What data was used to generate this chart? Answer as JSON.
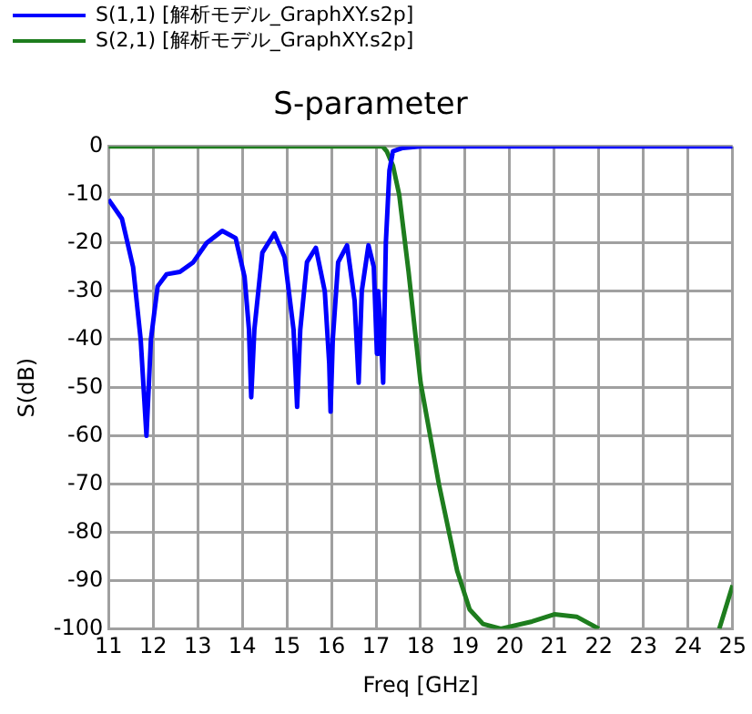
{
  "chart_data": {
    "type": "line",
    "title": "S-parameter",
    "xlabel": "Freq [GHz]",
    "ylabel": "S(dB)",
    "xlim": [
      11,
      25
    ],
    "xticks": [
      11,
      12,
      13,
      14,
      15,
      16,
      17,
      18,
      19,
      20,
      21,
      22,
      23,
      24,
      25
    ],
    "ylim": [
      -100,
      0
    ],
    "yticks": [
      -100,
      -90,
      -80,
      -70,
      -60,
      -50,
      -40,
      -30,
      -20,
      -10,
      0
    ],
    "grid": true,
    "legend": "top left",
    "marker": "none",
    "line_style": "solid",
    "series": [
      {
        "name": "S(1,1) [解析モデル_GraphXY.s2p]",
        "color": "#0000ff",
        "x": [
          11,
          11.3,
          11.55,
          11.72,
          11.85,
          11.95,
          12.1,
          12.3,
          12.6,
          12.9,
          13.2,
          13.55,
          13.85,
          14.05,
          14.15,
          14.2,
          14.27,
          14.45,
          14.72,
          14.95,
          15.15,
          15.23,
          15.3,
          15.45,
          15.65,
          15.85,
          15.95,
          15.98,
          16.03,
          16.15,
          16.35,
          16.52,
          16.61,
          16.68,
          16.83,
          16.95,
          17.02,
          17.05,
          17.1,
          17.16,
          17.22,
          17.3,
          17.38,
          17.6,
          18,
          25
        ],
        "values": [
          -11,
          -15,
          -25,
          -40,
          -60,
          -40,
          -29,
          -26.5,
          -26,
          -24,
          -20,
          -17.5,
          -19,
          -27,
          -38,
          -52,
          -38,
          -22,
          -18,
          -23,
          -38,
          -54,
          -38,
          -24,
          -21,
          -30,
          -45,
          -55,
          -40,
          -24,
          -20.5,
          -32,
          -49,
          -30,
          -20.5,
          -25,
          -43,
          -30,
          -38,
          -49,
          -20,
          -5,
          -1,
          -0.3,
          0,
          0
        ]
      },
      {
        "name": "S(2,1) [解析モデル_GraphXY.s2p]",
        "color": "#1e7d1e",
        "x": [
          11,
          17.15,
          17.24,
          17.38,
          17.52,
          17.73,
          18,
          18.41,
          18.82,
          19.1,
          19.4,
          19.8,
          20.5,
          21,
          21.5,
          22,
          22.1,
          24.6,
          24.7,
          25
        ],
        "values": [
          0,
          0,
          -1,
          -4,
          -10,
          -26,
          -49,
          -70,
          -88,
          -96,
          -99,
          -100,
          -98.5,
          -97,
          -97.5,
          -100,
          null,
          null,
          -100,
          -91
        ]
      }
    ]
  }
}
